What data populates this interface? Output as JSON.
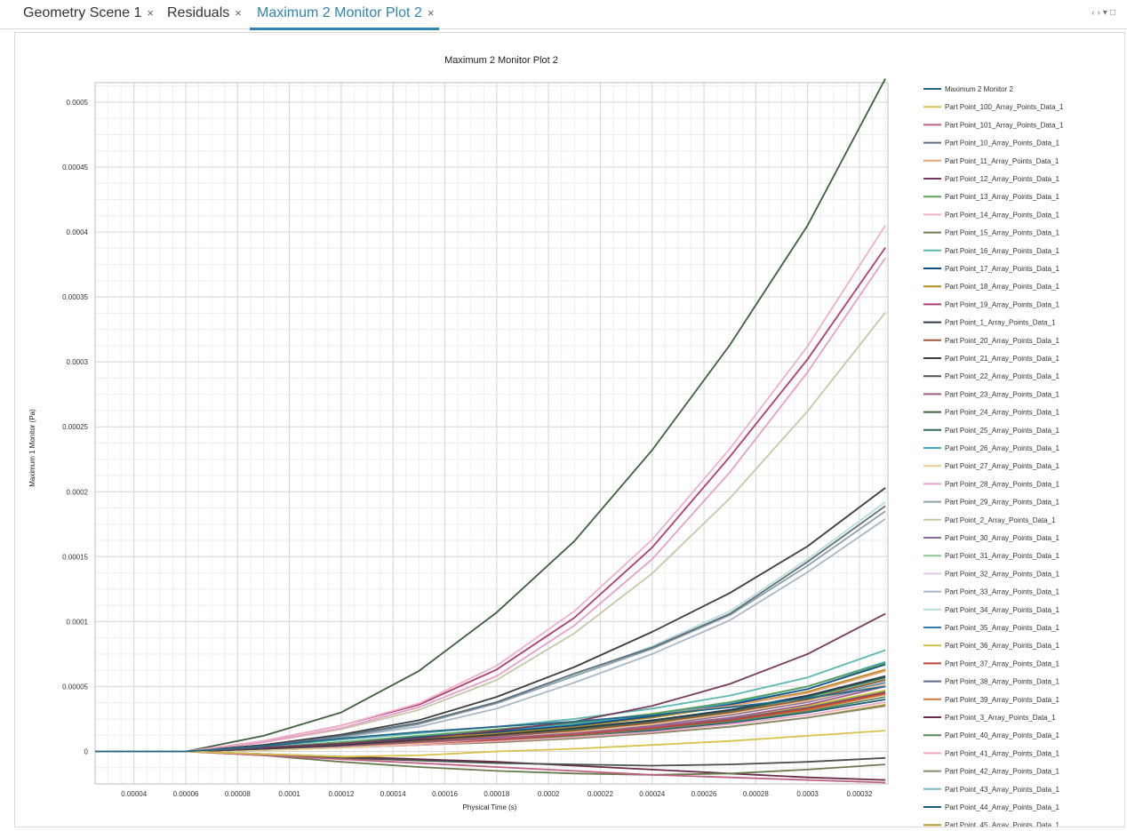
{
  "tabs": [
    {
      "label": "Geometry Scene 1",
      "active": false
    },
    {
      "label": "Residuals",
      "active": false
    },
    {
      "label": "Maximum 2 Monitor Plot 2",
      "active": true
    }
  ],
  "tab_close_symbol": "×",
  "window_controls": [
    "‹",
    "›",
    "▾",
    "□"
  ],
  "chart_data": {
    "type": "line",
    "title": "Maximum 2 Monitor Plot 2",
    "xlabel": "Physical Time (s)",
    "ylabel": "Maximum 1 Monitor (Pa)",
    "xlim": [
      2.5e-05,
      0.000331
    ],
    "ylim": [
      -2.5e-05,
      0.000515
    ],
    "xticks": [
      4e-05,
      6e-05,
      8e-05,
      0.0001,
      0.00012,
      0.00014,
      0.00016,
      0.00018,
      0.0002,
      0.00022,
      0.00024,
      0.00026,
      0.00028,
      0.0003,
      0.00032
    ],
    "xtick_labels": [
      "0.00004",
      "0.00006",
      "0.00008",
      "0.0001",
      "0.00012",
      "0.00014",
      "0.00016",
      "0.00018",
      "0.0002",
      "0.00022",
      "0.00024",
      "0.00026",
      "0.00028",
      "0.0003",
      "0.00032"
    ],
    "yticks": [
      0,
      5e-05,
      0.0001,
      0.00015,
      0.0002,
      0.00025,
      0.0003,
      0.00035,
      0.0004,
      0.00045,
      0.0005
    ],
    "ytick_labels": [
      "0",
      "0.00005",
      "0.0001",
      "0.00015",
      "0.0002",
      "0.00025",
      "0.0003",
      "0.00035",
      "0.0004",
      "0.00045",
      "0.0005"
    ],
    "grid": true,
    "legend_position": "right",
    "x": [
      2.5e-05,
      6e-05,
      9e-05,
      0.00012,
      0.00015,
      0.00018,
      0.00021,
      0.00024,
      0.00027,
      0.0003,
      0.00033
    ],
    "series": [
      {
        "name": "Maximum 2 Monitor 2",
        "color": "#1f6a8c",
        "values": [
          0,
          0,
          4e-06,
          1e-05,
          1.5e-05,
          1.9e-05,
          2.3e-05,
          2.8e-05,
          3.4e-05,
          4.1e-05,
          5e-05
        ]
      },
      {
        "name": "Part Point_100_Array_Points_Data_1",
        "color": "#d8c24a",
        "values": [
          0,
          0,
          -2e-06,
          -4e-06,
          -3e-06,
          0,
          2e-06,
          5e-06,
          8e-06,
          1.2e-05,
          1.6e-05
        ]
      },
      {
        "name": "Part Point_101_Array_Points_Data_1",
        "color": "#c06080",
        "values": [
          0,
          0,
          -3e-06,
          -6e-06,
          -9e-06,
          -1.2e-05,
          -1.5e-05,
          -1.8e-05,
          -2e-05,
          -2.2e-05,
          -2.4e-05
        ]
      },
      {
        "name": "Part Point_10_Array_Points_Data_1",
        "color": "#5d6e7e",
        "values": [
          0,
          0,
          4e-06,
          1.2e-05,
          2.2e-05,
          3.8e-05,
          6e-05,
          8e-05,
          0.000106,
          0.000146,
          0.000189
        ]
      },
      {
        "name": "Part Point_11_Array_Points_Data_1",
        "color": "#e8a070",
        "values": [
          0,
          0,
          4e-06,
          1e-05,
          1.5e-05,
          1.9e-05,
          2.3e-05,
          2.8e-05,
          3.5e-05,
          4.5e-05,
          6.2e-05
        ]
      },
      {
        "name": "Part Point_12_Array_Points_Data_1",
        "color": "#7a3a5c",
        "values": [
          0,
          0,
          3e-06,
          6e-06,
          1e-05,
          1.6e-05,
          2.3e-05,
          3.5e-05,
          5.2e-05,
          7.5e-05,
          0.000106
        ]
      },
      {
        "name": "Part Point_13_Array_Points_Data_1",
        "color": "#5aa05a",
        "values": [
          0,
          0,
          3e-06,
          7e-06,
          1.2e-05,
          1.7e-05,
          2.2e-05,
          2.9e-05,
          3.8e-05,
          5e-05,
          6.8e-05
        ]
      },
      {
        "name": "Part Point_14_Array_Points_Data_1",
        "color": "#f0b0c8",
        "values": [
          0,
          0,
          8e-06,
          2e-05,
          3.7e-05,
          6.6e-05,
          0.000108,
          0.000163,
          0.000233,
          0.000312,
          0.000405
        ]
      },
      {
        "name": "Part Point_15_Array_Points_Data_1",
        "color": "#6a7a50",
        "values": [
          0,
          0,
          -3e-06,
          -8e-06,
          -1.2e-05,
          -1.5e-05,
          -1.7e-05,
          -1.8e-05,
          -1.7e-05,
          -1.4e-05,
          -1e-05
        ]
      },
      {
        "name": "Part Point_16_Array_Points_Data_1",
        "color": "#5cb8b0",
        "values": [
          0,
          0,
          4e-06,
          9e-06,
          1.4e-05,
          1.9e-05,
          2.5e-05,
          3.3e-05,
          4.3e-05,
          5.7e-05,
          7.8e-05
        ]
      },
      {
        "name": "Part Point_17_Array_Points_Data_1",
        "color": "#0b4f8a",
        "values": [
          0,
          0,
          3e-06,
          7e-06,
          1.1e-05,
          1.5e-05,
          2e-05,
          2.7e-05,
          3.6e-05,
          4.8e-05,
          6.7e-05
        ]
      },
      {
        "name": "Part Point_18_Array_Points_Data_1",
        "color": "#b48a1c",
        "values": [
          0,
          0,
          3e-06,
          6e-06,
          1e-05,
          1.4e-05,
          1.9e-05,
          2.6e-05,
          3.5e-05,
          4.6e-05,
          6.3e-05
        ]
      },
      {
        "name": "Part Point_19_Array_Points_Data_1",
        "color": "#b03c70",
        "values": [
          0,
          0,
          8e-06,
          2e-05,
          3.6e-05,
          6.3e-05,
          0.000103,
          0.000157,
          0.000227,
          0.000302,
          0.000388
        ]
      },
      {
        "name": "Part Point_1_Array_Points_Data_1",
        "color": "#2c3a4a",
        "values": [
          0,
          0,
          2e-06,
          5e-06,
          9e-06,
          1.3e-05,
          1.8e-05,
          2.4e-05,
          3.2e-05,
          4.3e-05,
          5.8e-05
        ]
      },
      {
        "name": "Part Point_20_Array_Points_Data_1",
        "color": "#9a5a3a",
        "values": [
          0,
          0,
          2e-06,
          5e-06,
          8e-06,
          1.2e-05,
          1.6e-05,
          2.2e-05,
          3e-05,
          4e-05,
          5.5e-05
        ]
      },
      {
        "name": "Part Point_21_Array_Points_Data_1",
        "color": "#3e3e3e",
        "values": [
          0,
          0,
          5e-06,
          1.3e-05,
          2.4e-05,
          4.2e-05,
          6.5e-05,
          9.2e-05,
          0.000122,
          0.000158,
          0.000203
        ]
      },
      {
        "name": "Part Point_22_Array_Points_Data_1",
        "color": "#47524a",
        "values": [
          0,
          0,
          -2e-06,
          -5e-06,
          -7e-06,
          -9e-06,
          -1e-05,
          -1.1e-05,
          -1e-05,
          -8e-06,
          -5e-06
        ]
      },
      {
        "name": "Part Point_23_Array_Points_Data_1",
        "color": "#a05a8a",
        "values": [
          0,
          0,
          2e-06,
          4e-06,
          7e-06,
          1e-05,
          1.4e-05,
          1.9e-05,
          2.6e-05,
          3.6e-05,
          5e-05
        ]
      },
      {
        "name": "Part Point_24_Array_Points_Data_1",
        "color": "#3f5f3f",
        "values": [
          0,
          0,
          1.2e-05,
          3e-05,
          6.2e-05,
          0.000107,
          0.000162,
          0.000232,
          0.000313,
          0.000405,
          0.000518
        ]
      },
      {
        "name": "Part Point_25_Array_Points_Data_1",
        "color": "#2e6f5e",
        "values": [
          0,
          0,
          2e-06,
          5e-06,
          8e-06,
          1.2e-05,
          1.7e-05,
          2.3e-05,
          3.1e-05,
          4.2e-05,
          5.7e-05
        ]
      },
      {
        "name": "Part Point_26_Array_Points_Data_1",
        "color": "#46a6c8",
        "values": [
          0,
          0,
          3e-06,
          7e-06,
          1.1e-05,
          1.6e-05,
          2.1e-05,
          2.8e-05,
          3.7e-05,
          5e-05,
          6.9e-05
        ]
      },
      {
        "name": "Part Point_27_Array_Points_Data_1",
        "color": "#e6cf8c",
        "values": [
          0,
          0,
          1e-06,
          3e-06,
          6e-06,
          1e-05,
          1.5e-05,
          2.1e-05,
          2.9e-05,
          3.9e-05,
          5.2e-05
        ]
      },
      {
        "name": "Part Point_28_Array_Points_Data_1",
        "color": "#e6a0c8",
        "values": [
          0,
          0,
          7e-06,
          1.8e-05,
          3.4e-05,
          5.8e-05,
          9.7e-05,
          0.000148,
          0.000215,
          0.000292,
          0.00038
        ]
      },
      {
        "name": "Part Point_29_Array_Points_Data_1",
        "color": "#8ca0a8",
        "values": [
          0,
          0,
          4e-06,
          1.1e-05,
          2.1e-05,
          3.7e-05,
          5.8e-05,
          7.9e-05,
          0.000105,
          0.000143,
          0.000185
        ]
      },
      {
        "name": "Part Point_2_Array_Points_Data_1",
        "color": "#c8c8a8",
        "values": [
          0,
          0,
          7e-06,
          1.7e-05,
          3.2e-05,
          5.5e-05,
          9.1e-05,
          0.000137,
          0.000195,
          0.000262,
          0.000338
        ]
      },
      {
        "name": "Part Point_30_Array_Points_Data_1",
        "color": "#8a6aa0",
        "values": [
          0,
          0,
          2e-06,
          4e-06,
          7e-06,
          1.1e-05,
          1.5e-05,
          2e-05,
          2.8e-05,
          3.8e-05,
          5.2e-05
        ]
      },
      {
        "name": "Part Point_31_Array_Points_Data_1",
        "color": "#8ac88a",
        "values": [
          0,
          0,
          2e-06,
          5e-06,
          8e-06,
          1.2e-05,
          1.6e-05,
          2.2e-05,
          3e-05,
          4.1e-05,
          5.6e-05
        ]
      },
      {
        "name": "Part Point_32_Array_Points_Data_1",
        "color": "#e8c8e0",
        "values": [
          0,
          0,
          2e-06,
          5e-06,
          8e-06,
          1.1e-05,
          1.5e-05,
          2.1e-05,
          2.8e-05,
          3.8e-05,
          5.1e-05
        ]
      },
      {
        "name": "Part Point_33_Array_Points_Data_1",
        "color": "#a8b8c8",
        "values": [
          0,
          0,
          4e-06,
          1.1e-05,
          1.9e-05,
          3.3e-05,
          5.3e-05,
          7.5e-05,
          0.000101,
          0.000138,
          0.000179
        ]
      },
      {
        "name": "Part Point_34_Array_Points_Data_1",
        "color": "#b8dcd8",
        "values": [
          0,
          0,
          5e-06,
          1.2e-05,
          2.2e-05,
          3.8e-05,
          5.9e-05,
          8.1e-05,
          0.000108,
          0.000148,
          0.000192
        ]
      },
      {
        "name": "Part Point_35_Array_Points_Data_1",
        "color": "#2e7ab8",
        "values": [
          0,
          0,
          2e-06,
          5e-06,
          8e-06,
          1.2e-05,
          1.6e-05,
          2.2e-05,
          2.9e-05,
          3.9e-05,
          5.3e-05
        ]
      },
      {
        "name": "Part Point_36_Array_Points_Data_1",
        "color": "#d4c03a",
        "values": [
          0,
          0,
          2e-06,
          4e-06,
          7e-06,
          1e-05,
          1.4e-05,
          1.9e-05,
          2.6e-05,
          3.5e-05,
          4.7e-05
        ]
      },
      {
        "name": "Part Point_37_Array_Points_Data_1",
        "color": "#c0403a",
        "values": [
          0,
          0,
          2e-06,
          4e-06,
          6e-06,
          9e-06,
          1.3e-05,
          1.8e-05,
          2.4e-05,
          3.3e-05,
          4.5e-05
        ]
      },
      {
        "name": "Part Point_38_Array_Points_Data_1",
        "color": "#5a6a8a",
        "values": [
          0,
          0,
          2e-06,
          4e-06,
          7e-06,
          1e-05,
          1.4e-05,
          1.9e-05,
          2.5e-05,
          3.4e-05,
          4.6e-05
        ]
      },
      {
        "name": "Part Point_39_Array_Points_Data_1",
        "color": "#d07838",
        "values": [
          0,
          0,
          2e-06,
          4e-06,
          6e-06,
          9e-06,
          1.3e-05,
          1.8e-05,
          2.4e-05,
          3.2e-05,
          4.4e-05
        ]
      },
      {
        "name": "Part Point_3_Array_Points_Data_1",
        "color": "#6a2a4a",
        "values": [
          0,
          0,
          -2e-06,
          -4e-06,
          -6e-06,
          -8e-06,
          -1.1e-05,
          -1.4e-05,
          -1.7e-05,
          -2e-05,
          -2.2e-05
        ]
      },
      {
        "name": "Part Point_40_Array_Points_Data_1",
        "color": "#5a8a5a",
        "values": [
          0,
          0,
          2e-06,
          4e-06,
          6e-06,
          9e-06,
          1.2e-05,
          1.7e-05,
          2.3e-05,
          3.1e-05,
          4.2e-05
        ]
      },
      {
        "name": "Part Point_41_Array_Points_Data_1",
        "color": "#f0a8c0",
        "values": [
          0,
          0,
          2e-06,
          3e-06,
          5e-06,
          8e-06,
          1.1e-05,
          1.5e-05,
          2.1e-05,
          2.8e-05,
          3.8e-05
        ]
      },
      {
        "name": "Part Point_42_Array_Points_Data_1",
        "color": "#8a8a6a",
        "values": [
          0,
          0,
          1e-06,
          3e-06,
          5e-06,
          7e-06,
          1e-05,
          1.4e-05,
          1.9e-05,
          2.6e-05,
          3.5e-05
        ]
      },
      {
        "name": "Part Point_43_Array_Points_Data_1",
        "color": "#78b8c0",
        "values": [
          0,
          0,
          2e-06,
          4e-06,
          6e-06,
          9e-06,
          1.3e-05,
          1.8e-05,
          2.4e-05,
          3.3e-05,
          4.6e-05
        ]
      },
      {
        "name": "Part Point_44_Array_Points_Data_1",
        "color": "#1e5a7a",
        "values": [
          0,
          0,
          2e-06,
          4e-06,
          6e-06,
          9e-06,
          1.2e-05,
          1.6e-05,
          2.2e-05,
          3e-05,
          4e-05
        ]
      },
      {
        "name": "Part Point_45_Array_Points_Data_1",
        "color": "#b89a2a",
        "values": [
          0,
          0,
          1e-06,
          3e-06,
          5e-06,
          7e-06,
          1e-05,
          1.4e-05,
          1.9e-05,
          2.6e-05,
          3.6e-05
        ]
      }
    ]
  }
}
